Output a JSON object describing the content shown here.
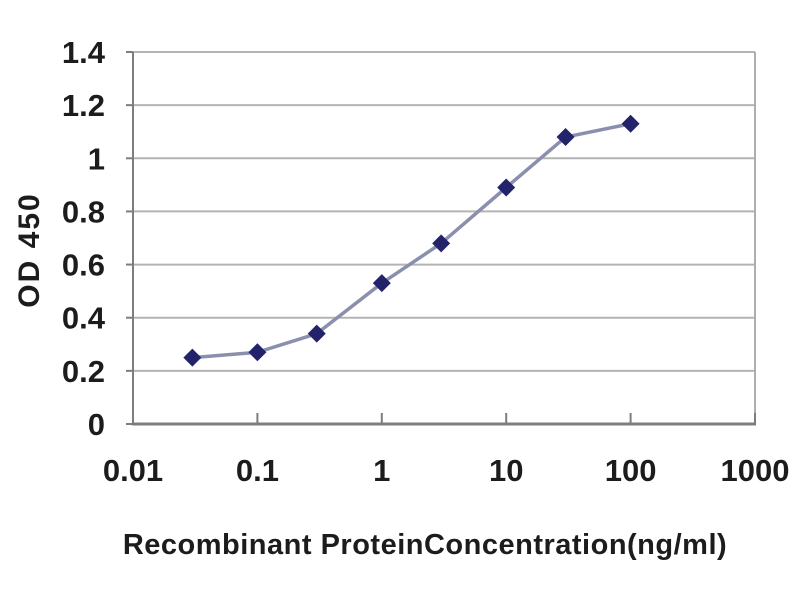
{
  "chart_data": {
    "type": "line",
    "title": "",
    "xlabel": "Recombinant ProteinConcentration(ng/ml)",
    "ylabel": "OD 450",
    "x_scale": "log",
    "xlim": [
      0.01,
      1000
    ],
    "ylim": [
      0,
      1.4
    ],
    "x_ticks": {
      "values": [
        0.01,
        0.1,
        1,
        10,
        100,
        1000
      ],
      "labels": [
        "0.01",
        "0.1",
        "1",
        "10",
        "100",
        "1000"
      ]
    },
    "y_ticks": {
      "values": [
        0,
        0.2,
        0.4,
        0.6,
        0.8,
        1,
        1.2,
        1.4
      ],
      "labels": [
        "0",
        "0.2",
        "0.4",
        "0.6",
        "0.8",
        "1",
        "1.2",
        "1.4"
      ]
    },
    "grid": "horizontal",
    "legend": "none",
    "series": [
      {
        "name": "OD 450",
        "x": [
          0.03,
          0.1,
          0.3,
          1,
          3,
          10,
          30,
          100
        ],
        "y": [
          0.25,
          0.27,
          0.34,
          0.53,
          0.68,
          0.89,
          1.08,
          1.13
        ],
        "marker": "diamond",
        "line_color": "#8a8fae",
        "marker_color": "#23236b"
      }
    ],
    "colors": {
      "background": "#ffffff",
      "plot_border": "#aeaeae",
      "gridline": "#b4b4b4",
      "axis": "#7d7d7d",
      "tick_text": "#1c1c1c"
    }
  }
}
